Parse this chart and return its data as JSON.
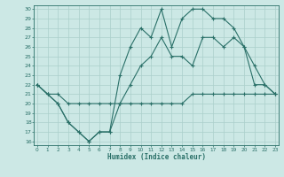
{
  "xlabel": "Humidex (Indice chaleur)",
  "background_color": "#cce8e5",
  "line_color": "#2a7068",
  "grid_color": "#aacfcb",
  "xlim": [
    -0.3,
    23.3
  ],
  "ylim": [
    15.6,
    30.4
  ],
  "yticks": [
    16,
    17,
    18,
    19,
    20,
    21,
    22,
    23,
    24,
    25,
    26,
    27,
    28,
    29,
    30
  ],
  "xticks": [
    0,
    1,
    2,
    3,
    4,
    5,
    6,
    7,
    8,
    9,
    10,
    11,
    12,
    13,
    14,
    15,
    16,
    17,
    18,
    19,
    20,
    21,
    22,
    23
  ],
  "line1_x": [
    0,
    1,
    2,
    3,
    4,
    5,
    6,
    7,
    8,
    9,
    10,
    11,
    12,
    13,
    14,
    15,
    16,
    17,
    18,
    19,
    20,
    21,
    22,
    23
  ],
  "line1_y": [
    22,
    21,
    21,
    20,
    20,
    20,
    20,
    20,
    20,
    20,
    20,
    20,
    20,
    20,
    20,
    21,
    21,
    21,
    21,
    21,
    21,
    21,
    21,
    21
  ],
  "line2_x": [
    0,
    1,
    2,
    3,
    4,
    5,
    6,
    7,
    8,
    9,
    10,
    11,
    12,
    13,
    14,
    15,
    16,
    17,
    18,
    19,
    20,
    21,
    22,
    23
  ],
  "line2_y": [
    22,
    21,
    20,
    18,
    17,
    16,
    17,
    17,
    20,
    22,
    24,
    25,
    27,
    25,
    25,
    24,
    27,
    27,
    26,
    27,
    26,
    22,
    22,
    21
  ],
  "line3_x": [
    0,
    1,
    2,
    3,
    4,
    5,
    6,
    7,
    8,
    9,
    10,
    11,
    12,
    13,
    14,
    15,
    16,
    17,
    18,
    19,
    20,
    21,
    22,
    23
  ],
  "line3_y": [
    22,
    21,
    20,
    18,
    17,
    16,
    17,
    17,
    23,
    26,
    28,
    27,
    30,
    26,
    29,
    30,
    30,
    29,
    29,
    28,
    26,
    24,
    22,
    21
  ]
}
